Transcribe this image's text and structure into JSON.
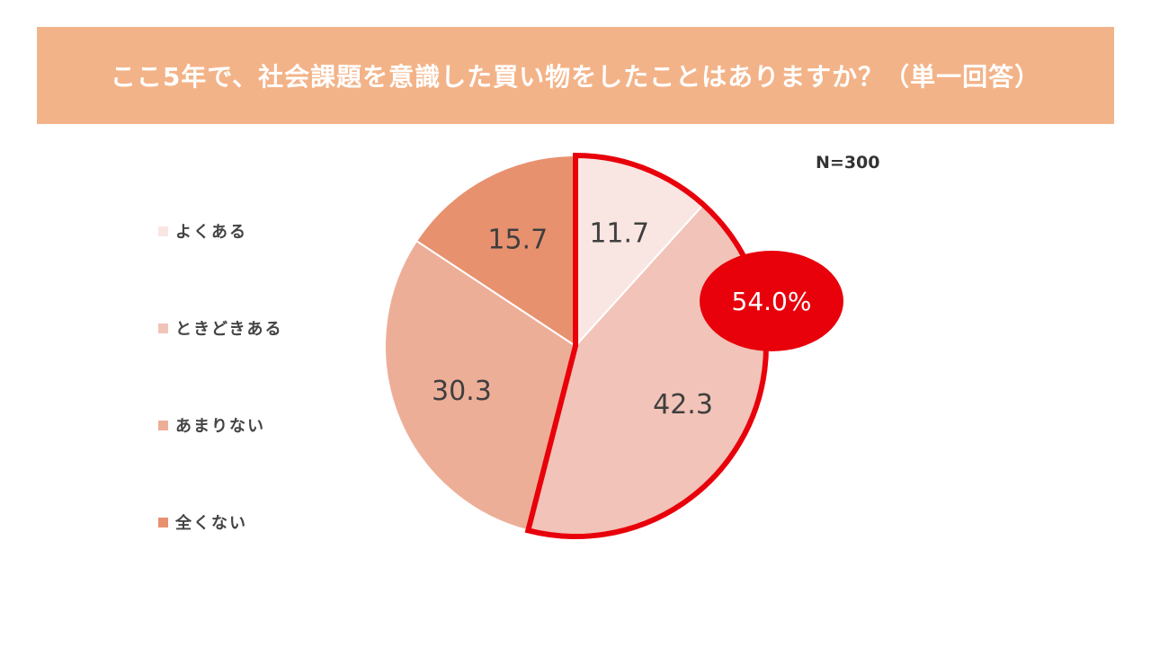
{
  "title": "ここ5年で、社会課題を意識した買い物をしたことはありますか？（単一回答）",
  "sample_size": "N=300",
  "colors": {
    "banner": "#f3b388",
    "highlight": "#e8000b"
  },
  "chart_data": {
    "type": "pie",
    "title": "ここ5年で、社会課題を意識した買い物をしたことはありますか？（単一回答）",
    "categories": [
      "よくある",
      "ときどきある",
      "あまりない",
      "全くない"
    ],
    "values": [
      11.7,
      42.3,
      30.3,
      15.7
    ],
    "labels": [
      "11.7",
      "42.3",
      "30.3",
      "15.7"
    ],
    "colors": [
      "#f9e6e3",
      "#f2c3b8",
      "#edae97",
      "#e8916f"
    ],
    "start": "12 o'clock",
    "direction": "clockwise",
    "legend_position": "left",
    "highlight": {
      "slices": [
        "よくある",
        "ときどきある"
      ],
      "label": "54.0%",
      "color": "#e8000b"
    }
  }
}
